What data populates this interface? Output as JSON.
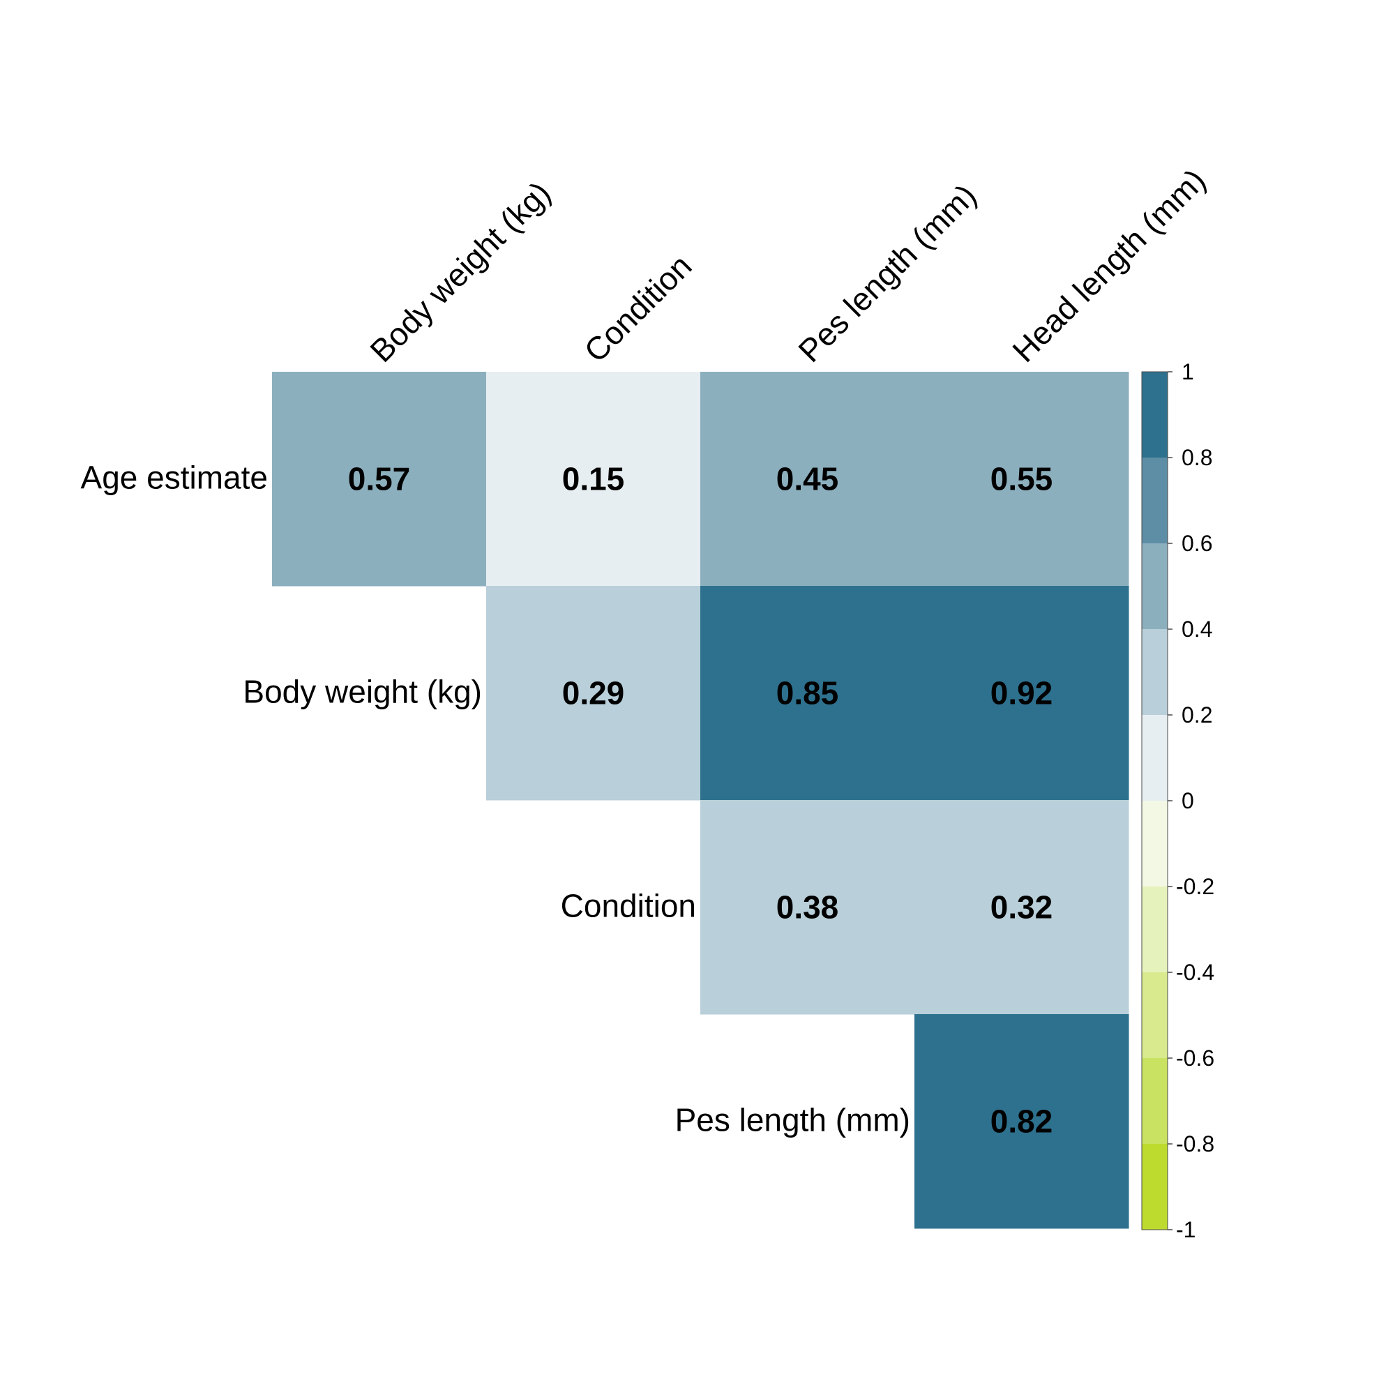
{
  "chart_data": {
    "type": "heatmap",
    "title": "",
    "row_labels": [
      "Age estimate",
      "Body weight (kg)",
      "Condition",
      "Pes length (mm)"
    ],
    "column_labels": [
      "Body weight (kg)",
      "Condition",
      "Pes length (mm)",
      "Head length (mm)"
    ],
    "cells": [
      {
        "row": 0,
        "col": 0,
        "value": 0.57,
        "label": "0.57"
      },
      {
        "row": 0,
        "col": 1,
        "value": 0.15,
        "label": "0.15"
      },
      {
        "row": 0,
        "col": 2,
        "value": 0.45,
        "label": "0.45"
      },
      {
        "row": 0,
        "col": 3,
        "value": 0.55,
        "label": "0.55"
      },
      {
        "row": 1,
        "col": 1,
        "value": 0.29,
        "label": "0.29"
      },
      {
        "row": 1,
        "col": 2,
        "value": 0.85,
        "label": "0.85"
      },
      {
        "row": 1,
        "col": 3,
        "value": 0.92,
        "label": "0.92"
      },
      {
        "row": 2,
        "col": 2,
        "value": 0.38,
        "label": "0.38"
      },
      {
        "row": 2,
        "col": 3,
        "value": 0.32,
        "label": "0.32"
      },
      {
        "row": 3,
        "col": 3,
        "value": 0.82,
        "label": "0.82"
      }
    ],
    "layout": "upper-triangle",
    "legend": {
      "type": "colorbar",
      "placement": "right",
      "range": [
        -1,
        1
      ],
      "ticks": [
        "1",
        "0.8",
        "0.6",
        "0.4",
        "0.2",
        "0",
        "-0.2",
        "-0.4",
        "-0.6",
        "-0.8",
        "-1"
      ],
      "bins": [
        {
          "from": 0.8,
          "to": 1.0,
          "color": "#2e718e"
        },
        {
          "from": 0.6,
          "to": 0.8,
          "color": "#5e8ea6"
        },
        {
          "from": 0.4,
          "to": 0.6,
          "color": "#8cafbe"
        },
        {
          "from": 0.2,
          "to": 0.4,
          "color": "#b9cfd9"
        },
        {
          "from": 0.0,
          "to": 0.2,
          "color": "#e7eef1"
        },
        {
          "from": -0.2,
          "to": 0.0,
          "color": "#f3f8e5"
        },
        {
          "from": -0.4,
          "to": -0.2,
          "color": "#e6f2bb"
        },
        {
          "from": -0.6,
          "to": -0.4,
          "color": "#d8ea8d"
        },
        {
          "from": -0.8,
          "to": -0.6,
          "color": "#c9e261"
        },
        {
          "from": -1.0,
          "to": -0.8,
          "color": "#bcdb2e"
        }
      ]
    }
  }
}
